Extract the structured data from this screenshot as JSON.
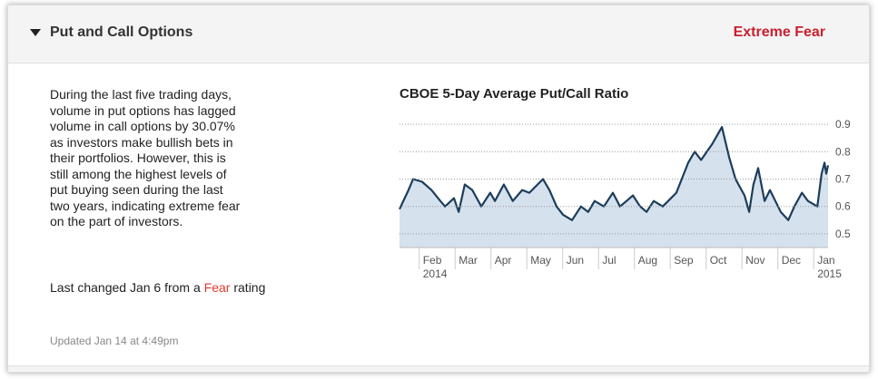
{
  "header": {
    "title": "Put and Call Options",
    "rating": "Extreme Fear"
  },
  "body_lines": [
    "During the last five trading days,",
    "volume in put options has lagged",
    "volume in call options by 30.07%",
    "as investors make bullish bets in",
    "their portfolios. However, this is",
    "still among the highest levels of",
    "put buying seen during the last",
    "two years, indicating extreme fear",
    "on the part of investors."
  ],
  "last_changed": {
    "before": "Last changed Jan 6 from a",
    "rating": "Fear",
    "after": "rating"
  },
  "updated": "Updated Jan 14 at 4:49pm",
  "chart_data": {
    "type": "area",
    "title": "CBOE 5-Day Average Put/Call Ratio",
    "x": [
      0.45,
      0.7,
      0.83,
      1.08,
      1.34,
      1.59,
      1.72,
      1.97,
      2.1,
      2.27,
      2.48,
      2.73,
      2.98,
      3.11,
      3.36,
      3.61,
      3.87,
      4.07,
      4.45,
      4.63,
      4.83,
      5.01,
      5.26,
      5.51,
      5.71,
      5.89,
      6.15,
      6.4,
      6.6,
      6.78,
      6.96,
      7.16,
      7.34,
      7.54,
      7.79,
      8.17,
      8.5,
      8.68,
      8.86,
      9.18,
      9.44,
      9.64,
      9.82,
      10.07,
      10.2,
      10.32,
      10.45,
      10.63,
      10.78,
      11.08,
      11.29,
      11.46,
      11.67,
      11.84,
      12.1,
      12.22,
      12.3,
      12.35,
      12.4
    ],
    "series": [
      {
        "name": "CBOE 5-Day Average Put/Call Ratio",
        "color": "#1c3d5a",
        "fill": "#d6e1ee",
        "values": [
          0.59,
          0.66,
          0.7,
          0.69,
          0.66,
          0.62,
          0.6,
          0.63,
          0.58,
          0.68,
          0.66,
          0.6,
          0.65,
          0.62,
          0.68,
          0.62,
          0.66,
          0.65,
          0.7,
          0.66,
          0.6,
          0.57,
          0.55,
          0.6,
          0.58,
          0.62,
          0.6,
          0.65,
          0.6,
          0.62,
          0.64,
          0.6,
          0.58,
          0.62,
          0.6,
          0.65,
          0.76,
          0.8,
          0.77,
          0.83,
          0.89,
          0.78,
          0.7,
          0.64,
          0.58,
          0.68,
          0.74,
          0.62,
          0.66,
          0.58,
          0.55,
          0.6,
          0.65,
          0.62,
          0.6,
          0.72,
          0.76,
          0.72,
          0.75
        ]
      }
    ],
    "xlim": [
      0.45,
      12.4
    ],
    "xticks": [
      {
        "value": 1,
        "label": "Feb"
      },
      {
        "value": 2,
        "label": "Mar"
      },
      {
        "value": 3,
        "label": "Apr"
      },
      {
        "value": 4,
        "label": "May"
      },
      {
        "value": 5,
        "label": "Jun"
      },
      {
        "value": 6,
        "label": "Jul"
      },
      {
        "value": 7,
        "label": "Aug"
      },
      {
        "value": 8,
        "label": "Sep"
      },
      {
        "value": 9,
        "label": "Oct"
      },
      {
        "value": 10,
        "label": "Nov"
      },
      {
        "value": 11,
        "label": "Dec"
      },
      {
        "value": 12,
        "label": "Jan"
      }
    ],
    "year_labels": [
      {
        "x": 1,
        "text": "2014"
      },
      {
        "x": 12,
        "text": "2015"
      }
    ],
    "ylim": [
      0.45,
      0.95
    ],
    "yticks": [
      0.5,
      0.6,
      0.7,
      0.8,
      0.9
    ],
    "grid": true
  }
}
